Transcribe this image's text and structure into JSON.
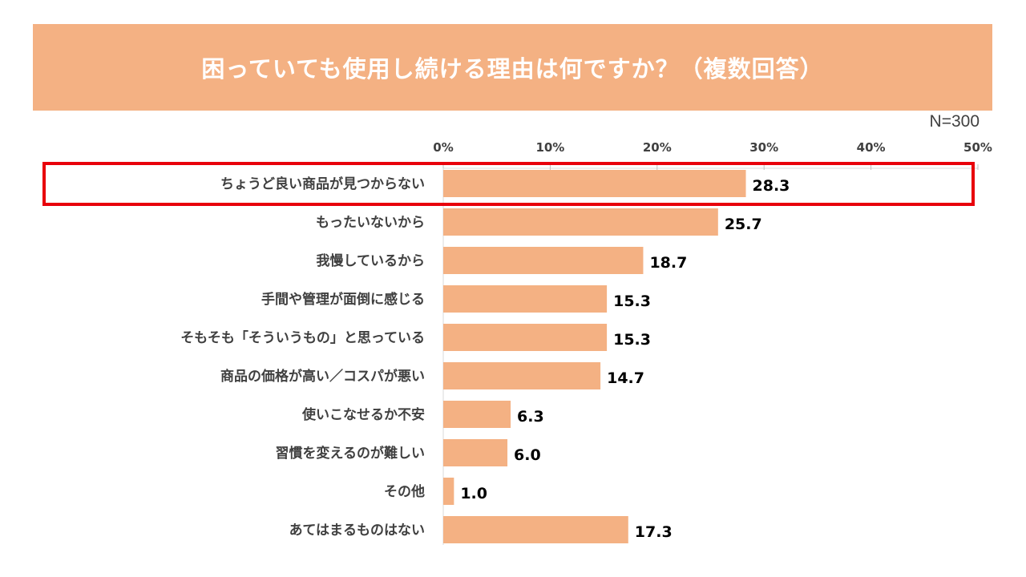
{
  "header": {
    "title": "困っていても使用し続ける理由は何ですか？（複数回答）",
    "sample": "N=300"
  },
  "colors": {
    "banner": "#F4B183",
    "bar": "#F4B183",
    "highlight": "#E8000B"
  },
  "chart_data": {
    "type": "bar",
    "orientation": "horizontal",
    "title": "困っていても使用し続ける理由は何ですか？（複数回答）",
    "xlim": [
      0,
      50
    ],
    "xticks": [
      "0%",
      "10%",
      "20%",
      "30%",
      "40%",
      "50%"
    ],
    "tick_values": [
      0,
      10,
      20,
      30,
      40,
      50
    ],
    "grid": false,
    "highlighted_category": "ちょうど良い商品が見つからない",
    "categories": [
      "ちょうど良い商品が見つからない",
      "もったいないから",
      "我慢しているから",
      "手間や管理が面倒に感じる",
      "そもそも「そういうもの」と思っている",
      "商品の価格が高い／コスパが悪い",
      "使いこなせるか不安",
      "習慣を変えるのが難しい",
      "その他",
      "あてはまるものはない"
    ],
    "values": [
      28.3,
      25.7,
      18.7,
      15.3,
      15.3,
      14.7,
      6.3,
      6.0,
      1.0,
      17.3
    ],
    "value_labels": [
      "28.3",
      "25.7",
      "18.7",
      "15.3",
      "15.3",
      "14.7",
      "6.3",
      "6.0",
      "1.0",
      "17.3"
    ]
  }
}
